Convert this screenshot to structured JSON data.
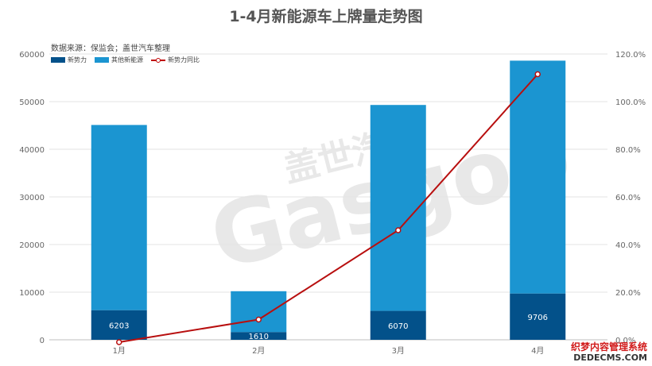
{
  "title": "1-4月新能源车上牌量走势图",
  "source": "数据来源：保监会；盖世汽车整理",
  "watermark": {
    "brand_cn": "盖世汽车",
    "brand_en": "Gasgoo"
  },
  "footer_watermark": {
    "line1": "织梦内容管理系统",
    "line2": "DEDECMS.COM"
  },
  "colors": {
    "new_forces": "#03518a",
    "other_ev": "#1b95d1",
    "yoy_line": "#b80f0f",
    "grid": "#e3e3e3",
    "axis_text": "#666666"
  },
  "legend": [
    {
      "label": "新势力",
      "kind": "bar",
      "color": "#03518a"
    },
    {
      "label": "其他新能源",
      "kind": "bar",
      "color": "#1b95d1"
    },
    {
      "label": "新势力同比",
      "kind": "line",
      "color": "#b80f0f"
    }
  ],
  "chart_data": {
    "type": "bar",
    "stacked": true,
    "categories": [
      "1月",
      "2月",
      "3月",
      "4月"
    ],
    "series": [
      {
        "name": "新势力",
        "values": [
          6203,
          1610,
          6070,
          9706
        ],
        "data_labels": [
          "6203",
          "1610",
          "6070",
          "9706"
        ]
      },
      {
        "name": "其他新能源",
        "values": [
          38897,
          8590,
          43230,
          48894
        ]
      }
    ],
    "line_series": {
      "name": "新势力同比",
      "axis": "right",
      "values": [
        -0.01,
        0.085,
        0.46,
        1.115
      ]
    },
    "y_left": {
      "ylim": [
        0,
        60000
      ],
      "ticks": [
        "0",
        "10000",
        "20000",
        "30000",
        "40000",
        "50000",
        "60000"
      ]
    },
    "y_right": {
      "ylim": [
        0,
        1.2
      ],
      "ticks": [
        "0.0%",
        "20.0%",
        "40.0%",
        "60.0%",
        "80.0%",
        "100.0%",
        "120.0%"
      ]
    },
    "grid": true,
    "legend_position": "top-left"
  }
}
